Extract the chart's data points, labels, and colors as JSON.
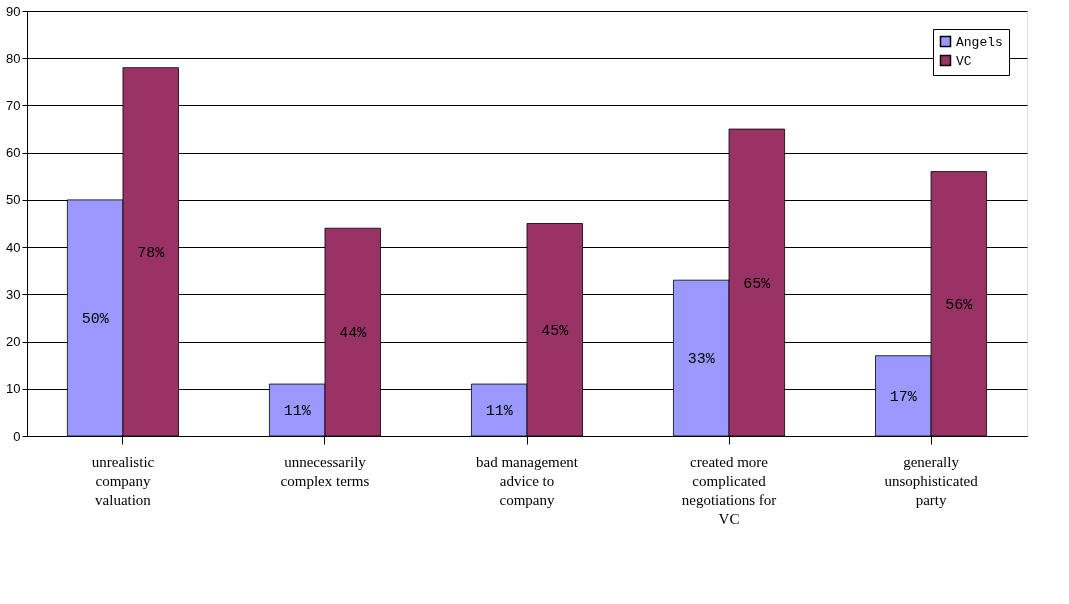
{
  "chart_data": {
    "type": "bar",
    "categories": [
      "unrealistic company valuation",
      "unnecessarily complex terms",
      "bad management advice to company",
      "created more complicated negotiations for VC",
      "generally unsophisticated party"
    ],
    "series": [
      {
        "name": "Angels",
        "color": "#9999ff",
        "values": [
          50,
          11,
          11,
          33,
          17
        ],
        "value_labels": [
          "50%",
          "11%",
          "11%",
          "33%",
          "17%"
        ]
      },
      {
        "name": "VC",
        "color": "#993366",
        "values": [
          78,
          44,
          45,
          65,
          56
        ],
        "value_labels": [
          "78%",
          "44%",
          "45%",
          "65%",
          "56%"
        ]
      }
    ],
    "ylim": [
      0,
      90
    ],
    "yticks": [
      0,
      10,
      20,
      30,
      40,
      50,
      60,
      70,
      80,
      90
    ],
    "grid": "y",
    "legend": "top right"
  }
}
